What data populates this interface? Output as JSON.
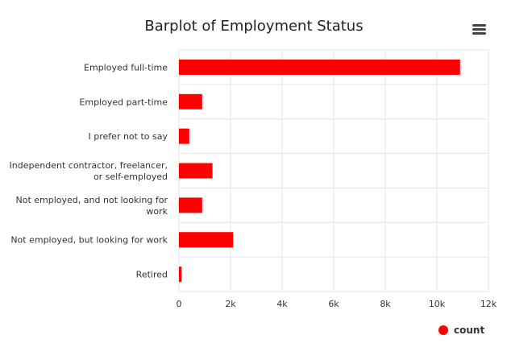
{
  "colors": {
    "bar": "#ff0000",
    "grid": "#e6e6e6",
    "text": "#333333"
  },
  "menu": {
    "icon": "hamburger-menu-icon"
  },
  "chart_data": {
    "type": "bar",
    "orientation": "horizontal",
    "title": "Barplot of Employment Status",
    "xlabel": "",
    "ylabel": "",
    "categories": [
      "Employed full-time",
      "Employed part-time",
      "I prefer not to say",
      "Independent contractor, freelancer, or self-employed",
      "Not employed, and not looking for work",
      "Not employed, but looking for work",
      "Retired"
    ],
    "category_lines": [
      [
        "Employed full-time"
      ],
      [
        "Employed part-time"
      ],
      [
        "I prefer not to say"
      ],
      [
        "Independent contractor, freelancer,",
        "or self-employed"
      ],
      [
        "Not employed, and not looking for",
        "work"
      ],
      [
        "Not employed, but looking for work"
      ],
      [
        "Retired"
      ]
    ],
    "series": [
      {
        "name": "count",
        "values": [
          10900,
          900,
          400,
          1300,
          900,
          2100,
          100
        ]
      }
    ],
    "xlim": [
      0,
      12000
    ],
    "xticks": [
      0,
      2000,
      4000,
      6000,
      8000,
      10000,
      12000
    ],
    "xtick_labels": [
      "0",
      "2k",
      "4k",
      "6k",
      "8k",
      "10k",
      "12k"
    ],
    "grid": true,
    "legend": "bottom-right"
  }
}
